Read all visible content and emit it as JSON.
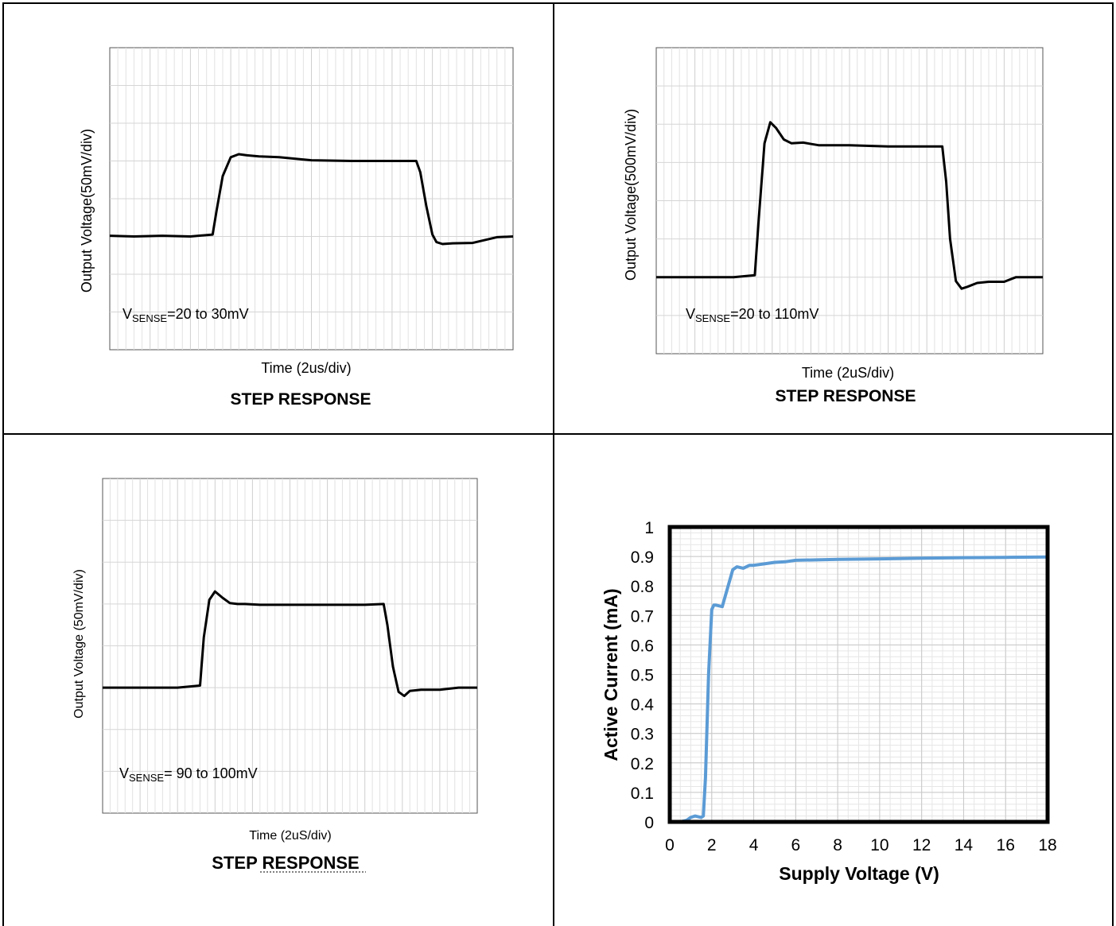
{
  "charts": [
    {
      "type": "line",
      "ylabel": "Output Voltage(50mV/div)",
      "xlabel": "Time (2us/div)",
      "caption": "STEP RESPONSE",
      "note_main": "V",
      "note_sub": "SENSE",
      "note_rest": "=20 to 30mV",
      "grid": true,
      "x_divisions": 10,
      "y_divisions": 8,
      "ylim": [
        0,
        8
      ],
      "xlim": [
        0,
        10
      ],
      "x": [
        0,
        0.6,
        1.3,
        2.0,
        2.55,
        2.65,
        2.8,
        3.0,
        3.2,
        3.4,
        3.7,
        4.2,
        5.0,
        6.0,
        7.0,
        7.6,
        7.7,
        7.85,
        8.0,
        8.1,
        8.25,
        8.5,
        9.0,
        9.6,
        10
      ],
      "y": [
        3.02,
        3.0,
        3.02,
        3.0,
        3.05,
        3.7,
        4.6,
        5.1,
        5.18,
        5.15,
        5.12,
        5.1,
        5.02,
        5.0,
        5.0,
        5.0,
        4.7,
        3.8,
        3.05,
        2.85,
        2.8,
        2.82,
        2.83,
        2.98,
        3.0
      ]
    },
    {
      "type": "line",
      "ylabel": "Output Voltage(500mV/div)",
      "xlabel": "Time (2uS/div)",
      "caption": "STEP RESPONSE",
      "note_main": "V",
      "note_sub": "SENSE",
      "note_rest": "=20 to 110mV",
      "grid": true,
      "x_divisions": 10,
      "y_divisions": 8,
      "ylim": [
        0,
        8
      ],
      "xlim": [
        0,
        10
      ],
      "x": [
        0,
        1.0,
        2.0,
        2.55,
        2.65,
        2.8,
        2.95,
        3.1,
        3.3,
        3.5,
        3.8,
        4.2,
        5.0,
        6.0,
        7.0,
        7.4,
        7.5,
        7.6,
        7.75,
        7.9,
        8.05,
        8.3,
        8.6,
        9.0,
        9.3,
        10
      ],
      "y": [
        2.0,
        2.0,
        2.0,
        2.05,
        3.5,
        5.5,
        6.05,
        5.9,
        5.6,
        5.5,
        5.52,
        5.45,
        5.45,
        5.42,
        5.42,
        5.42,
        4.5,
        3.0,
        1.9,
        1.7,
        1.75,
        1.85,
        1.88,
        1.88,
        2.0,
        2.0
      ]
    },
    {
      "type": "line",
      "ylabel": "Output Voltage (50mV/div)",
      "xlabel": "Time (2uS/div)",
      "caption": "STEP RESPONSE",
      "note_main": "V",
      "note_sub": "SENSE",
      "note_rest": "= 90 to 100mV",
      "grid": true,
      "x_divisions": 10,
      "y_divisions": 8,
      "ylim": [
        0,
        8
      ],
      "xlim": [
        0,
        10
      ],
      "x": [
        0,
        1.0,
        2.0,
        2.6,
        2.7,
        2.85,
        3.0,
        3.2,
        3.4,
        3.6,
        3.8,
        4.2,
        5.0,
        6.0,
        7.0,
        7.5,
        7.6,
        7.75,
        7.9,
        8.05,
        8.2,
        8.5,
        9.0,
        9.5,
        10
      ],
      "y": [
        3.0,
        3.0,
        3.0,
        3.05,
        4.2,
        5.1,
        5.3,
        5.15,
        5.02,
        5.0,
        5.0,
        4.98,
        4.98,
        4.98,
        4.98,
        5.0,
        4.5,
        3.5,
        2.9,
        2.8,
        2.92,
        2.95,
        2.95,
        3.0,
        3.0
      ]
    },
    {
      "type": "line",
      "ylabel": "Active Current (mA)",
      "xlabel": "Supply Voltage (V)",
      "xlim": [
        0,
        18
      ],
      "ylim": [
        0,
        1
      ],
      "grid": true,
      "line_color": "#5b9bd5",
      "x_ticks": [
        "0",
        "2",
        "4",
        "6",
        "8",
        "10",
        "12",
        "14",
        "16",
        "18"
      ],
      "y_ticks": [
        "0",
        "0.1",
        "0.2",
        "0.3",
        "0.4",
        "0.5",
        "0.6",
        "0.7",
        "0.8",
        "0.9",
        "1"
      ],
      "x": [
        0,
        0.5,
        0.8,
        1.0,
        1.2,
        1.5,
        1.6,
        1.7,
        1.85,
        2.0,
        2.1,
        2.2,
        2.5,
        2.7,
        3.0,
        3.2,
        3.5,
        3.8,
        4.0,
        4.5,
        5.0,
        5.5,
        6.0,
        8.0,
        10.0,
        12.0,
        14.0,
        16.0,
        18.0
      ],
      "y": [
        0.0,
        0.0,
        0.005,
        0.015,
        0.02,
        0.015,
        0.02,
        0.15,
        0.5,
        0.72,
        0.735,
        0.735,
        0.73,
        0.78,
        0.855,
        0.865,
        0.86,
        0.87,
        0.87,
        0.875,
        0.88,
        0.882,
        0.887,
        0.89,
        0.892,
        0.894,
        0.896,
        0.897,
        0.898
      ]
    }
  ]
}
